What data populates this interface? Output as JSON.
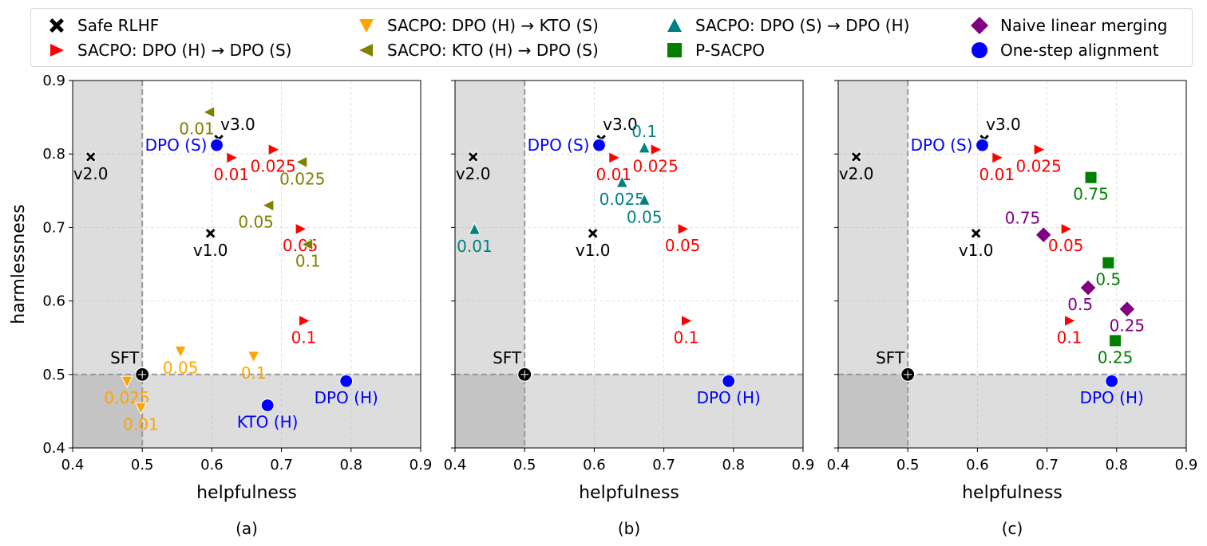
{
  "legend": [
    {
      "key": "safe_rlhf",
      "label": "Safe RLHF",
      "marker": "x-icon",
      "color": "#000000"
    },
    {
      "key": "sacpo_dpoh_dpos",
      "label": "SACPO: DPO (H) → DPO (S)",
      "marker": "triangle-right-icon",
      "color": "#ff0000"
    },
    {
      "key": "sacpo_dpoh_ktos",
      "label": "SACPO: DPO (H) → KTO (S)",
      "marker": "triangle-down-icon",
      "color": "#ffa500"
    },
    {
      "key": "sacpo_ktoh_dpos",
      "label": "SACPO: KTO (H) → DPO (S)",
      "marker": "triangle-left-icon",
      "color": "#808000"
    },
    {
      "key": "sacpo_dpos_dpoh",
      "label": "SACPO: DPO (S) → DPO (H)",
      "marker": "triangle-up-icon",
      "color": "#008080"
    },
    {
      "key": "psacpo",
      "label": "P-SACPO",
      "marker": "square-icon",
      "color": "#008000"
    },
    {
      "key": "naive",
      "label": "Naive linear merging",
      "marker": "diamond-icon",
      "color": "#800080"
    },
    {
      "key": "onestep",
      "label": "One-step alignment",
      "marker": "circle-icon",
      "color": "#0000ff"
    }
  ],
  "chart_data": [
    {
      "type": "scatter",
      "caption": "(a)",
      "xlabel": "helpfulness",
      "ylabel": "harmlessness",
      "xlim": [
        0.4,
        0.9
      ],
      "ylim": [
        0.4,
        0.9
      ],
      "xticks": [
        "0.4",
        "0.5",
        "0.6",
        "0.7",
        "0.8",
        "0.9"
      ],
      "yticks": [
        "0.4",
        "0.5",
        "0.6",
        "0.7",
        "0.8",
        "0.9"
      ],
      "grid": true,
      "reference": {
        "x": 0.5,
        "y": 0.5
      },
      "series": [
        {
          "name": "Safe RLHF",
          "points": [
            {
              "x": 0.426,
              "y": 0.796,
              "label": "v2.0",
              "pos": "below"
            },
            {
              "x": 0.61,
              "y": 0.82,
              "label": "v3.0",
              "pos": "above-right"
            },
            {
              "x": 0.598,
              "y": 0.692,
              "label": "v1.0",
              "pos": "below"
            }
          ]
        },
        {
          "name": "SACPO: DPO (H) → DPO (S)",
          "points": [
            {
              "x": 0.628,
              "y": 0.795,
              "label": "0.01",
              "pos": "below"
            },
            {
              "x": 0.688,
              "y": 0.806,
              "label": "0.025",
              "pos": "below"
            },
            {
              "x": 0.727,
              "y": 0.698,
              "label": "0.05",
              "pos": "below"
            },
            {
              "x": 0.732,
              "y": 0.573,
              "label": "0.1",
              "pos": "below"
            }
          ]
        },
        {
          "name": "SACPO: DPO (H) → KTO (S)",
          "points": [
            {
              "x": 0.555,
              "y": 0.532,
              "label": "0.05",
              "pos": "below"
            },
            {
              "x": 0.478,
              "y": 0.491,
              "label": "0.025",
              "pos": "below"
            },
            {
              "x": 0.498,
              "y": 0.455,
              "label": "0.01",
              "pos": "below"
            },
            {
              "x": 0.66,
              "y": 0.525,
              "label": "0.1",
              "pos": "below"
            }
          ]
        },
        {
          "name": "SACPO: KTO (H) → DPO (S)",
          "points": [
            {
              "x": 0.597,
              "y": 0.857,
              "label": "0.01",
              "pos": "below-left"
            },
            {
              "x": 0.73,
              "y": 0.789,
              "label": "0.025",
              "pos": "below"
            },
            {
              "x": 0.682,
              "y": 0.73,
              "label": "0.05",
              "pos": "below-left"
            },
            {
              "x": 0.738,
              "y": 0.677,
              "label": "0.1",
              "pos": "below"
            }
          ]
        },
        {
          "name": "One-step alignment",
          "points": [
            {
              "x": 0.607,
              "y": 0.812,
              "label": "DPO (S)",
              "pos": "left"
            },
            {
              "x": 0.793,
              "y": 0.491,
              "label": "DPO (H)",
              "pos": "below"
            },
            {
              "x": 0.68,
              "y": 0.458,
              "label": "KTO (H)",
              "pos": "below"
            }
          ]
        },
        {
          "name": "SFT",
          "points": [
            {
              "x": 0.5,
              "y": 0.5,
              "label": "SFT",
              "pos": "above-left"
            }
          ]
        }
      ]
    },
    {
      "type": "scatter",
      "caption": "(b)",
      "xlabel": "helpfulness",
      "ylabel": "",
      "xlim": [
        0.4,
        0.9
      ],
      "ylim": [
        0.4,
        0.9
      ],
      "xticks": [
        "0.4",
        "0.5",
        "0.6",
        "0.7",
        "0.8",
        "0.9"
      ],
      "yticks": [],
      "grid": true,
      "reference": {
        "x": 0.5,
        "y": 0.5
      },
      "series": [
        {
          "name": "Safe RLHF",
          "points": [
            {
              "x": 0.426,
              "y": 0.796,
              "label": "v2.0",
              "pos": "below"
            },
            {
              "x": 0.61,
              "y": 0.82,
              "label": "v3.0",
              "pos": "above-right"
            },
            {
              "x": 0.598,
              "y": 0.692,
              "label": "v1.0",
              "pos": "below"
            }
          ]
        },
        {
          "name": "SACPO: DPO (H) → DPO (S)",
          "points": [
            {
              "x": 0.628,
              "y": 0.795,
              "label": "0.01",
              "pos": "below"
            },
            {
              "x": 0.688,
              "y": 0.806,
              "label": "0.025",
              "pos": "below"
            },
            {
              "x": 0.727,
              "y": 0.698,
              "label": "0.05",
              "pos": "below"
            },
            {
              "x": 0.732,
              "y": 0.573,
              "label": "0.1",
              "pos": "below"
            }
          ]
        },
        {
          "name": "SACPO: DPO (S) → DPO (H)",
          "points": [
            {
              "x": 0.428,
              "y": 0.697,
              "label": "0.01",
              "pos": "below"
            },
            {
              "x": 0.64,
              "y": 0.761,
              "label": "0.025",
              "pos": "below"
            },
            {
              "x": 0.672,
              "y": 0.737,
              "label": "0.05",
              "pos": "below"
            },
            {
              "x": 0.672,
              "y": 0.808,
              "label": "0.1",
              "pos": "above"
            }
          ]
        },
        {
          "name": "One-step alignment",
          "points": [
            {
              "x": 0.607,
              "y": 0.812,
              "label": "DPO (S)",
              "pos": "left"
            },
            {
              "x": 0.793,
              "y": 0.491,
              "label": "DPO (H)",
              "pos": "below"
            }
          ]
        },
        {
          "name": "SFT",
          "points": [
            {
              "x": 0.5,
              "y": 0.5,
              "label": "SFT",
              "pos": "above-left"
            }
          ]
        }
      ]
    },
    {
      "type": "scatter",
      "caption": "(c)",
      "xlabel": "helpfulness",
      "ylabel": "",
      "xlim": [
        0.4,
        0.9
      ],
      "ylim": [
        0.4,
        0.9
      ],
      "xticks": [
        "0.4",
        "0.5",
        "0.6",
        "0.7",
        "0.8",
        "0.9"
      ],
      "yticks": [],
      "grid": true,
      "reference": {
        "x": 0.5,
        "y": 0.5
      },
      "series": [
        {
          "name": "Safe RLHF",
          "points": [
            {
              "x": 0.426,
              "y": 0.796,
              "label": "v2.0",
              "pos": "below"
            },
            {
              "x": 0.61,
              "y": 0.82,
              "label": "v3.0",
              "pos": "above-right"
            },
            {
              "x": 0.598,
              "y": 0.692,
              "label": "v1.0",
              "pos": "below"
            }
          ]
        },
        {
          "name": "SACPO: DPO (H) → DPO (S)",
          "points": [
            {
              "x": 0.628,
              "y": 0.795,
              "label": "0.01",
              "pos": "below"
            },
            {
              "x": 0.688,
              "y": 0.806,
              "label": "0.025",
              "pos": "below"
            },
            {
              "x": 0.727,
              "y": 0.698,
              "label": "0.05",
              "pos": "below"
            },
            {
              "x": 0.732,
              "y": 0.573,
              "label": "0.1",
              "pos": "below"
            }
          ]
        },
        {
          "name": "P-SACPO",
          "points": [
            {
              "x": 0.763,
              "y": 0.768,
              "label": "0.75",
              "pos": "below"
            },
            {
              "x": 0.788,
              "y": 0.652,
              "label": "0.5",
              "pos": "below"
            },
            {
              "x": 0.798,
              "y": 0.546,
              "label": "0.25",
              "pos": "below"
            }
          ]
        },
        {
          "name": "Naive linear merging",
          "points": [
            {
              "x": 0.695,
              "y": 0.69,
              "label": "0.75",
              "pos": "above-left"
            },
            {
              "x": 0.759,
              "y": 0.618,
              "label": "0.5",
              "pos": "below-left"
            },
            {
              "x": 0.815,
              "y": 0.589,
              "label": "0.25",
              "pos": "below"
            }
          ]
        },
        {
          "name": "One-step alignment",
          "points": [
            {
              "x": 0.607,
              "y": 0.812,
              "label": "DPO (S)",
              "pos": "left"
            },
            {
              "x": 0.793,
              "y": 0.491,
              "label": "DPO (H)",
              "pos": "below"
            }
          ]
        },
        {
          "name": "SFT",
          "points": [
            {
              "x": 0.5,
              "y": 0.5,
              "label": "SFT",
              "pos": "above-left"
            }
          ]
        }
      ]
    }
  ]
}
